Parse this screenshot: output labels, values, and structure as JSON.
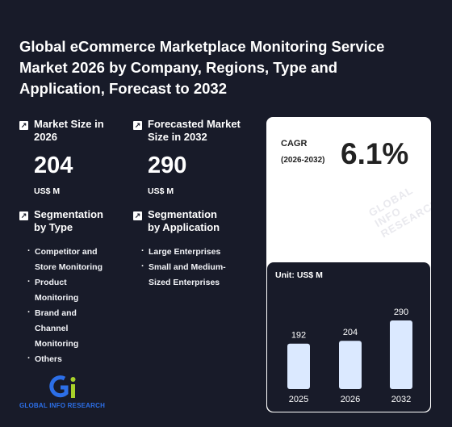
{
  "title": "Global eCommerce Marketplace Monitoring Service Market 2026 by Company, Regions, Type and Application, Forecast to 2032",
  "market_size": {
    "label": "Market Size in 2026",
    "value": "204",
    "unit": "US$ M"
  },
  "forecast": {
    "label": "Forecasted Market Size in 2032",
    "value": "290",
    "unit": "US$ M"
  },
  "segmentation_type": {
    "label": "Segmentation by Type",
    "items": [
      "Competitor and Store Monitoring",
      "Product Monitoring",
      "Brand and Channel Monitoring",
      "Others"
    ]
  },
  "segmentation_application": {
    "label": "Segmentation by Application",
    "items": [
      "Large Enterprises",
      "Small and Medium-Sized Enterprises"
    ]
  },
  "cagr": {
    "label": "CAGR",
    "period": "(2026-2032)",
    "value": "6.1%"
  },
  "watermark": "GLOBAL INFO RESEARCH",
  "chart_data": {
    "type": "bar",
    "unit_label": "Unit: US$ M",
    "categories": [
      "2025",
      "2026",
      "2032"
    ],
    "values": [
      192,
      204,
      290
    ],
    "bar_color": "#dbe9ff"
  },
  "logo": {
    "text": "GLOBAL INFO RESEARCH",
    "brand_color": "#2c6fe8",
    "accent_color": "#a8d12a"
  },
  "colors": {
    "background": "#181b29",
    "card": "#ffffff"
  }
}
